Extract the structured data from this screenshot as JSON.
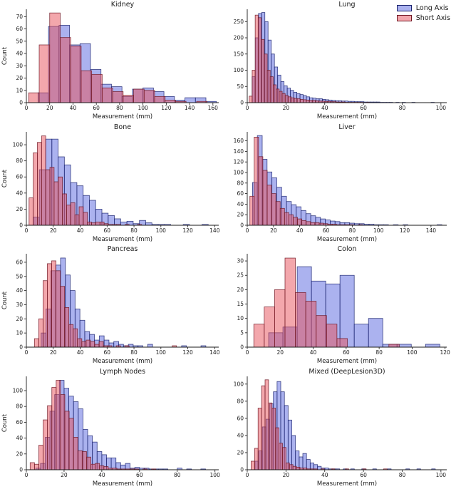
{
  "figure": {
    "background": "#ffffff"
  },
  "legend": {
    "items": [
      {
        "label": "Long Axis",
        "series_key": "long"
      },
      {
        "label": "Short Axis",
        "series_key": "short"
      }
    ]
  },
  "colors": {
    "long_fill": "#5865E0",
    "long_edge": "#1C246E",
    "short_fill": "#E8505A",
    "short_edge": "#701824",
    "fill_alpha": 0.5,
    "axis": "#1a1a1a"
  },
  "chart_data": [
    {
      "type": "histogram",
      "title": "Kidney",
      "xlabel": "Measurement (mm)",
      "ylabel": "Count",
      "xlim": [
        0,
        165
      ],
      "ylim": [
        0,
        76
      ],
      "xticks": [
        0,
        20,
        40,
        60,
        80,
        100,
        120,
        140,
        160
      ],
      "yticks": [
        0,
        10,
        20,
        30,
        40,
        50,
        60,
        70
      ],
      "series": [
        {
          "name": "Long Axis",
          "bin_start": 10,
          "bin_width": 9,
          "counts": [
            8,
            62,
            63,
            47,
            48,
            27,
            15,
            13,
            5,
            11,
            12,
            9,
            5,
            2,
            4,
            4,
            1
          ]
        },
        {
          "name": "Short Axis",
          "bin_start": 2,
          "bin_width": 9,
          "counts": [
            8,
            47,
            73,
            53,
            46,
            26,
            23,
            12,
            9,
            6,
            11,
            10,
            5,
            2,
            1,
            0,
            1
          ]
        }
      ]
    },
    {
      "type": "histogram",
      "title": "Lung",
      "xlabel": "Measurement (mm)",
      "ylabel": "",
      "xlim": [
        0,
        103
      ],
      "ylim": [
        0,
        288
      ],
      "xticks": [
        0,
        20,
        40,
        60,
        80,
        100
      ],
      "yticks": [
        0,
        50,
        100,
        150,
        200,
        250
      ],
      "series": [
        {
          "name": "Long Axis",
          "bin_start": 2.5,
          "bin_width": 1.65,
          "counts": [
            80,
            200,
            275,
            278,
            250,
            193,
            150,
            110,
            85,
            65,
            52,
            45,
            38,
            32,
            28,
            25,
            22,
            18,
            15,
            14,
            12,
            12,
            10,
            9,
            8,
            7,
            6,
            6,
            5,
            5,
            4,
            4,
            3,
            3,
            3,
            2,
            2,
            2,
            2,
            2,
            1,
            1,
            1,
            1,
            0,
            1,
            0,
            1,
            0,
            0,
            1,
            0,
            0,
            0,
            0,
            0,
            1
          ]
        },
        {
          "name": "Short Axis",
          "bin_start": 1,
          "bin_width": 1.55,
          "counts": [
            20,
            100,
            270,
            262,
            195,
            150,
            100,
            80,
            55,
            42,
            35,
            28,
            22,
            18,
            15,
            13,
            12,
            10,
            9,
            8,
            7,
            7,
            6,
            5,
            5,
            4,
            4,
            3,
            3,
            2,
            2,
            2,
            1,
            1,
            1,
            1,
            1,
            1,
            0,
            1
          ]
        }
      ]
    },
    {
      "type": "histogram",
      "title": "Bone",
      "xlabel": "Measurement (mm)",
      "ylabel": "Count",
      "xlim": [
        0,
        143
      ],
      "ylim": [
        0,
        116
      ],
      "xticks": [
        0,
        20,
        40,
        60,
        80,
        100,
        120,
        140
      ],
      "yticks": [
        0,
        20,
        40,
        60,
        80,
        100
      ],
      "series": [
        {
          "name": "Long Axis",
          "bin_start": 5,
          "bin_width": 4.65,
          "counts": [
            10,
            69,
            107,
            107,
            85,
            75,
            53,
            49,
            37,
            31,
            20,
            15,
            12,
            8,
            4,
            5,
            2,
            6,
            3,
            1,
            1,
            1,
            0,
            0,
            1,
            0,
            0,
            1
          ]
        },
        {
          "name": "Short Axis",
          "bin_start": 2,
          "bin_width": 3.1,
          "counts": [
            34,
            90,
            103,
            111,
            69,
            72,
            54,
            60,
            39,
            25,
            28,
            13,
            23,
            16,
            4,
            3,
            4,
            4,
            2,
            1,
            1,
            1,
            0,
            1,
            0,
            0,
            1
          ]
        }
      ]
    },
    {
      "type": "histogram",
      "title": "Liver",
      "xlabel": "Measurement (mm)",
      "ylabel": "",
      "xlim": [
        0,
        152
      ],
      "ylim": [
        0,
        177
      ],
      "xticks": [
        0,
        20,
        40,
        60,
        80,
        100,
        120,
        140
      ],
      "yticks": [
        0,
        20,
        40,
        60,
        80,
        100,
        120,
        140,
        160
      ],
      "series": [
        {
          "name": "Long Axis",
          "bin_start": 4,
          "bin_width": 3.7,
          "counts": [
            81,
            170,
            125,
            101,
            90,
            72,
            55,
            45,
            39,
            35,
            28,
            22,
            18,
            15,
            12,
            10,
            8,
            7,
            5,
            5,
            4,
            3,
            3,
            2,
            2,
            1,
            1,
            1,
            0,
            1,
            0,
            1,
            0,
            0,
            0,
            0,
            0,
            0,
            1
          ]
        },
        {
          "name": "Short Axis",
          "bin_start": 2,
          "bin_width": 3.3,
          "counts": [
            55,
            167,
            130,
            104,
            76,
            60,
            45,
            32,
            24,
            20,
            15,
            12,
            9,
            7,
            5,
            5,
            4,
            3,
            2,
            2,
            1,
            1,
            1,
            1,
            0,
            1
          ]
        }
      ]
    },
    {
      "type": "histogram",
      "title": "Pancreas",
      "xlabel": "Measurement (mm)",
      "ylabel": "Count",
      "xlim": [
        0,
        143
      ],
      "ylim": [
        0,
        66
      ],
      "xticks": [
        0,
        20,
        40,
        60,
        80,
        100,
        120,
        140
      ],
      "yticks": [
        0,
        10,
        20,
        30,
        40,
        50,
        60
      ],
      "series": [
        {
          "name": "Long Axis",
          "bin_start": 11,
          "bin_width": 3.6,
          "counts": [
            10,
            27,
            54,
            58,
            63,
            51,
            40,
            27,
            19,
            11,
            9,
            5,
            8,
            5,
            3,
            4,
            2,
            1,
            2,
            1,
            1,
            0,
            2,
            0,
            0,
            0,
            0,
            0,
            0,
            1,
            0,
            0,
            0,
            1
          ]
        },
        {
          "name": "Short Axis",
          "bin_start": 6,
          "bin_width": 3.2,
          "counts": [
            6,
            20,
            47,
            59,
            61,
            54,
            43,
            28,
            16,
            13,
            6,
            4,
            5,
            4,
            2,
            4,
            1,
            1,
            0,
            1,
            0,
            1,
            0,
            0,
            0,
            0,
            0,
            0,
            0,
            0,
            0,
            0,
            1
          ]
        }
      ]
    },
    {
      "type": "histogram",
      "title": "Colon",
      "xlabel": "Measurement (mm)",
      "ylabel": "",
      "xlim": [
        0,
        121
      ],
      "ylim": [
        0,
        32.5
      ],
      "xticks": [
        0,
        20,
        40,
        60,
        80,
        100,
        120
      ],
      "yticks": [
        0,
        5,
        10,
        15,
        20,
        25,
        30
      ],
      "series": [
        {
          "name": "Long Axis",
          "bin_start": 13,
          "bin_width": 8.65,
          "counts": [
            5,
            7,
            28,
            23,
            22,
            25,
            8,
            10,
            1,
            1,
            0,
            1
          ]
        },
        {
          "name": "Short Axis",
          "bin_start": 4,
          "bin_width": 6.3,
          "counts": [
            8,
            14,
            20,
            31,
            19,
            16,
            11,
            8,
            3,
            0,
            0,
            0,
            0,
            1
          ]
        }
      ]
    },
    {
      "type": "histogram",
      "title": "Lymph Nodes",
      "xlabel": "Measurement (mm)",
      "ylabel": "Count",
      "xlim": [
        0,
        102
      ],
      "ylim": [
        0,
        118
      ],
      "xticks": [
        0,
        20,
        40,
        60,
        80,
        100
      ],
      "yticks": [
        0,
        20,
        40,
        60,
        80,
        100
      ],
      "series": [
        {
          "name": "Long Axis",
          "bin_start": 5,
          "bin_width": 2.5,
          "counts": [
            2,
            8,
            41,
            74,
            95,
            113,
            103,
            93,
            86,
            77,
            51,
            43,
            35,
            23,
            19,
            15,
            15,
            9,
            6,
            8,
            2,
            3,
            2,
            2,
            1,
            1,
            1,
            1,
            0,
            0,
            2,
            0,
            1,
            0,
            0,
            1
          ]
        },
        {
          "name": "Short Axis",
          "bin_start": 2,
          "bin_width": 2.3,
          "counts": [
            9,
            7,
            31,
            63,
            81,
            104,
            113,
            95,
            74,
            65,
            41,
            24,
            23,
            16,
            7,
            8,
            5,
            4,
            2,
            2,
            1,
            1,
            1,
            1,
            1,
            0,
            1,
            0,
            1
          ]
        }
      ]
    },
    {
      "type": "histogram",
      "title": "Mixed (DeepLesion3D)",
      "xlabel": "Measurement (mm)",
      "ylabel": "",
      "xlim": [
        0,
        103
      ],
      "ylim": [
        0,
        109
      ],
      "xticks": [
        0,
        20,
        40,
        60,
        80,
        100
      ],
      "yticks": [
        0,
        20,
        40,
        60,
        80,
        100
      ],
      "series": [
        {
          "name": "Long Axis",
          "bin_start": 4,
          "bin_width": 1.9,
          "counts": [
            10,
            22,
            50,
            59,
            77,
            91,
            103,
            91,
            75,
            58,
            40,
            22,
            15,
            19,
            12,
            8,
            6,
            4,
            2,
            2,
            1,
            1,
            1,
            0,
            1,
            0,
            1,
            0,
            0,
            1,
            0,
            0,
            1,
            0,
            0,
            0,
            1,
            0,
            0,
            0,
            0,
            1,
            0,
            0,
            1,
            0,
            0,
            0,
            1
          ]
        },
        {
          "name": "Short Axis",
          "bin_start": 2,
          "bin_width": 1.8,
          "counts": [
            10,
            25,
            72,
            98,
            105,
            78,
            72,
            49,
            31,
            26,
            8,
            6,
            4,
            3,
            2,
            2,
            1,
            1,
            1,
            0,
            1,
            0,
            0,
            1,
            0,
            0,
            0,
            1,
            0,
            0,
            0,
            0,
            1,
            0,
            0,
            0,
            0,
            0,
            1
          ]
        }
      ]
    }
  ]
}
